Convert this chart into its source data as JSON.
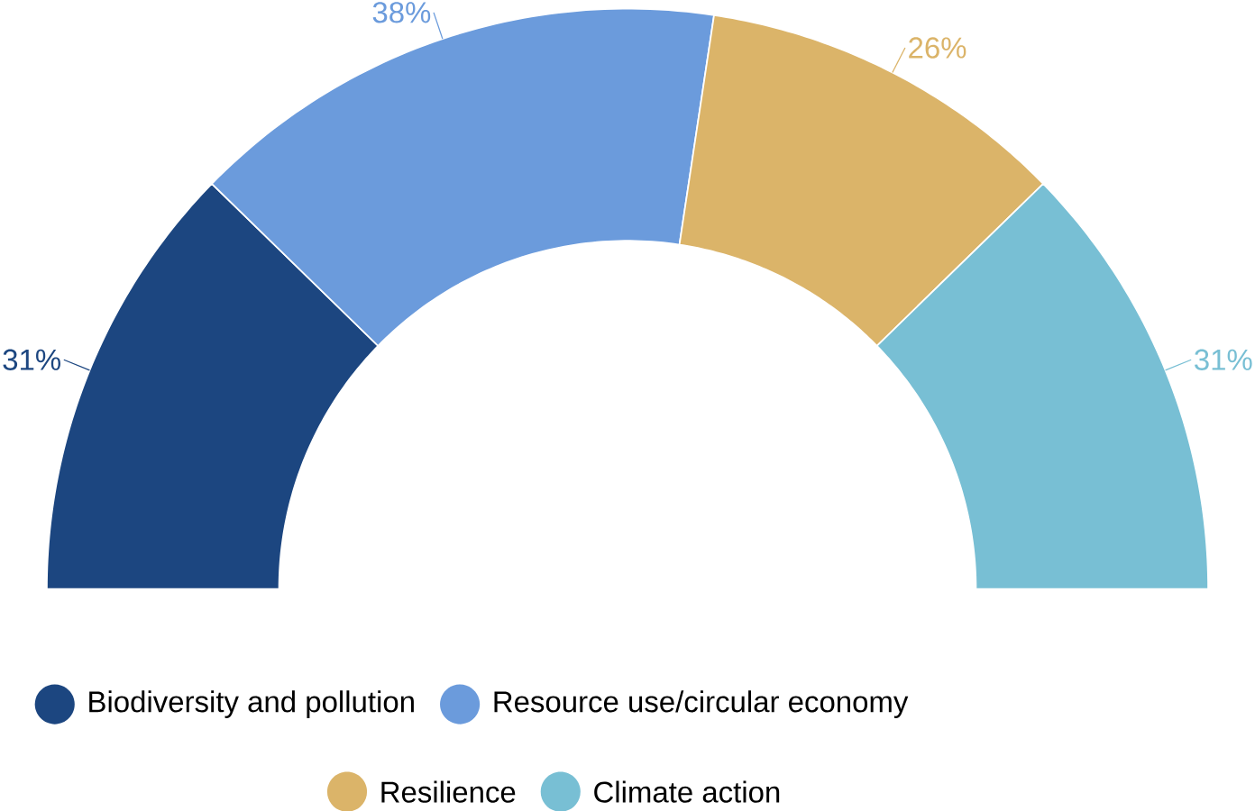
{
  "chart_data": {
    "type": "donut",
    "categories": [
      "Biodiversity and pollution",
      "Resource use/circular economy",
      "Resilience",
      "Climate action"
    ],
    "values": [
      31,
      38,
      26,
      31
    ],
    "value_labels": [
      "31%",
      "38%",
      "26%",
      "31%"
    ],
    "colors": [
      "#1c4680",
      "#6b9bdc",
      "#dbb469",
      "#78bfd4"
    ],
    "legend": "bottom"
  }
}
